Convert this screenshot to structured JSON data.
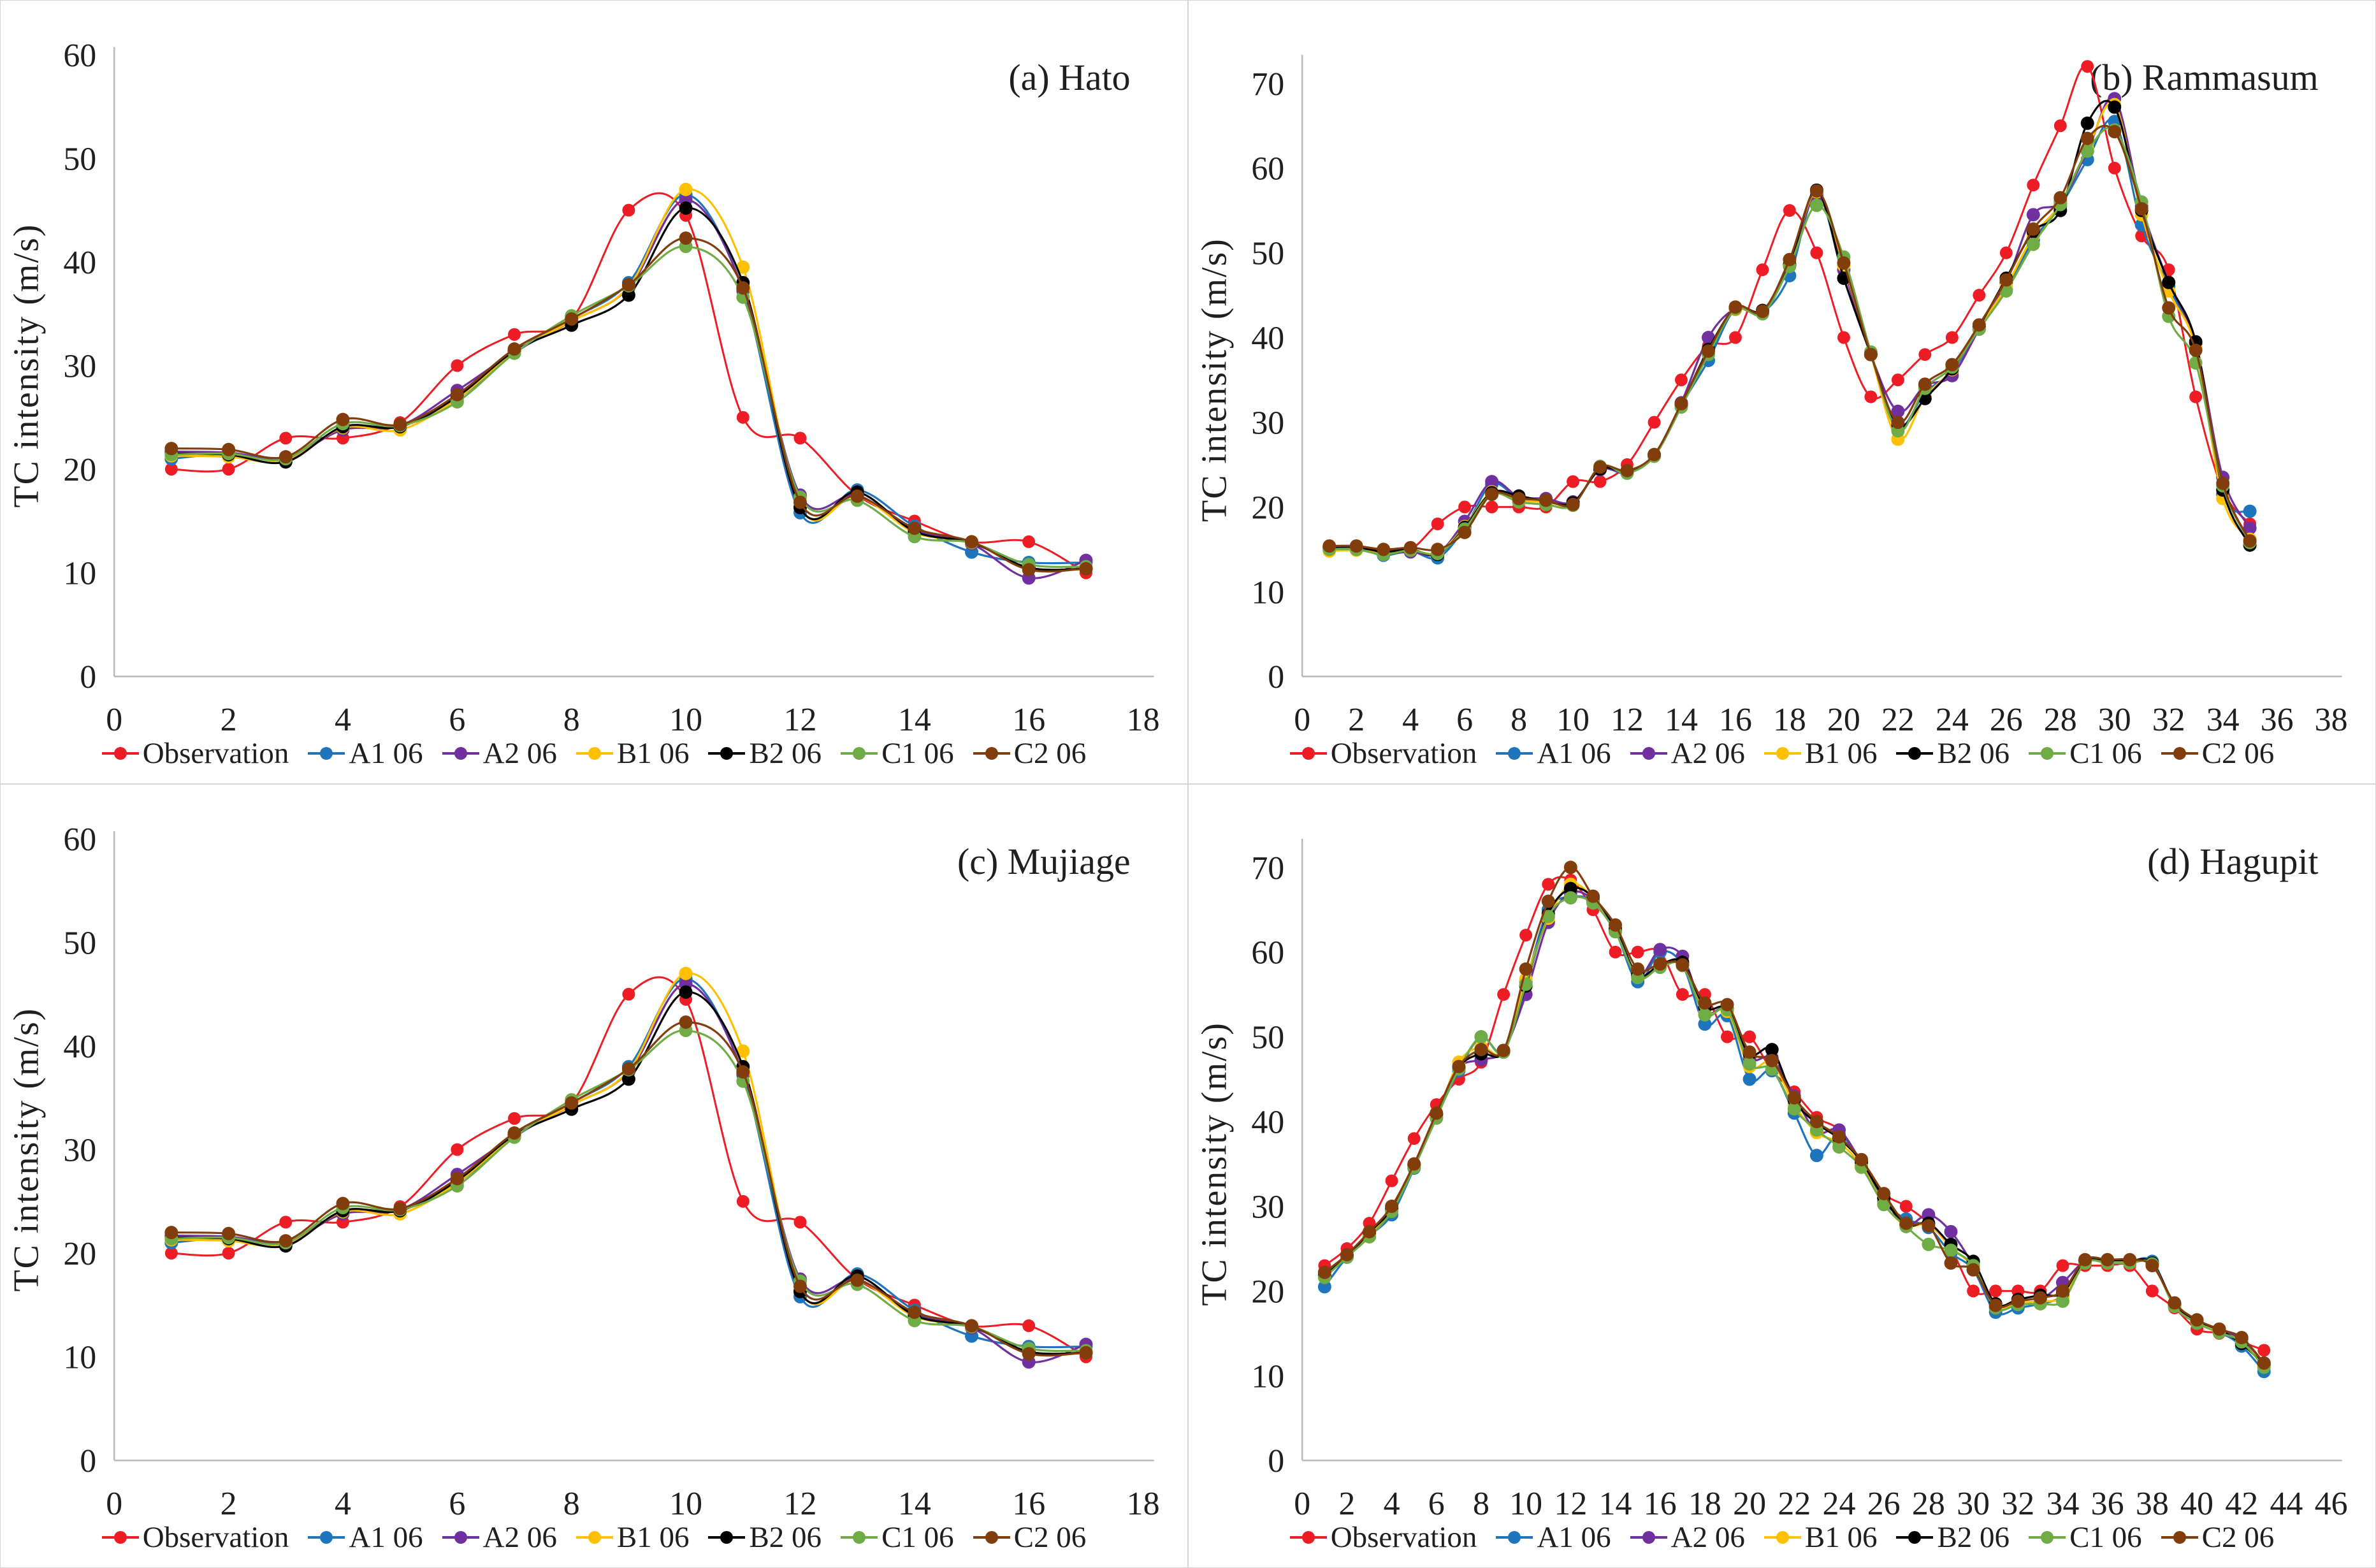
{
  "page": {
    "background": "#ffffff",
    "frame_color": "#d6d6d6"
  },
  "chart_data": [
    {
      "id": "a",
      "type": "line",
      "title": "(a) Hato",
      "xlabel": "",
      "ylabel": "TC intensity (m/s)",
      "xlim": [
        0,
        18
      ],
      "xtick_step": 2,
      "ylim": [
        0,
        60
      ],
      "ytick_step": 10,
      "x_start": 1,
      "grid": false,
      "legend_position": "bottom",
      "series": [
        {
          "name": "Observation",
          "color": "#EE1C25",
          "values": [
            20,
            20,
            23,
            23,
            24.5,
            30,
            33,
            34.5,
            45,
            44.5,
            25,
            23,
            17.5,
            15,
            13,
            13,
            10
          ]
        },
        {
          "name": "A1 06",
          "color": "#1F75BB",
          "values": [
            21,
            21.5,
            21,
            24,
            24.2,
            26.8,
            31.2,
            34.5,
            38,
            46.5,
            37.2,
            15.8,
            18,
            14.5,
            12,
            11,
            11
          ]
        },
        {
          "name": "A2 06",
          "color": "#7030A0",
          "values": [
            21.7,
            21.6,
            21.1,
            23.8,
            24.2,
            27.6,
            31.3,
            34.3,
            37.5,
            46,
            37.4,
            17.5,
            17.5,
            14.2,
            12.8,
            9.5,
            11.2
          ]
        },
        {
          "name": "B1 06",
          "color": "#FFC000",
          "values": [
            21.3,
            21.2,
            20.8,
            24,
            23.8,
            26.8,
            31.3,
            34.3,
            37.6,
            47,
            39.5,
            16.4,
            17.4,
            13.9,
            12.9,
            10.5,
            10.4
          ]
        },
        {
          "name": "B2 06",
          "color": "#000000",
          "values": [
            21.5,
            21.4,
            20.7,
            24.1,
            24.1,
            27,
            31.4,
            33.9,
            36.8,
            45.2,
            38,
            16.3,
            17.8,
            14,
            12.9,
            10.5,
            10.4
          ]
        },
        {
          "name": "C1 06",
          "color": "#6FAC46",
          "values": [
            21.4,
            21.5,
            21,
            24.4,
            24.2,
            26.5,
            31.2,
            34.8,
            37.7,
            41.5,
            36.6,
            17.3,
            17,
            13.5,
            12.9,
            10.8,
            10.6
          ]
        },
        {
          "name": "C2 06",
          "color": "#823D0C",
          "values": [
            22,
            21.9,
            21.2,
            24.8,
            24.3,
            27.2,
            31.6,
            34.5,
            37.8,
            42.3,
            37.5,
            16.8,
            17.4,
            14.3,
            13,
            10.3,
            10.4
          ]
        }
      ]
    },
    {
      "id": "b",
      "type": "line",
      "title": "(b) Rammasum",
      "xlabel": "",
      "ylabel": "TC intensity (m/s)",
      "xlim": [
        0,
        38
      ],
      "xtick_step": 2,
      "ylim": [
        0,
        70
      ],
      "ytick_step": 10,
      "x_start": 1,
      "grid": false,
      "legend_position": "bottom",
      "series": [
        {
          "name": "Observation",
          "color": "#EE1C25",
          "values": [
            15,
            15,
            15,
            15,
            18,
            20,
            20,
            20,
            20,
            23,
            23,
            25,
            30,
            35,
            39,
            40,
            48,
            55,
            50,
            40,
            33,
            35,
            38,
            40,
            45,
            50,
            58,
            65,
            72,
            60,
            52,
            48,
            33,
            22,
            18
          ]
        },
        {
          "name": "A1 06",
          "color": "#1F75BB",
          "values": [
            15.2,
            15.2,
            14.3,
            14.8,
            14,
            17.5,
            22.7,
            21,
            20.7,
            20.5,
            24.4,
            24,
            26,
            32,
            37.3,
            43.4,
            43,
            47.3,
            57,
            47,
            38,
            29.5,
            33.5,
            36,
            41,
            45.7,
            51.5,
            55.5,
            61,
            65.5,
            53.3,
            46,
            38.8,
            21.5,
            19.5
          ]
        },
        {
          "name": "A2 06",
          "color": "#7030A0",
          "values": [
            15.1,
            15.1,
            14.5,
            14.7,
            14.5,
            18.3,
            23,
            21.2,
            21,
            20.6,
            24.4,
            24.1,
            26,
            32.3,
            40,
            43.4,
            43,
            48.5,
            56.8,
            48,
            38,
            31.3,
            34.3,
            35.5,
            41,
            46.5,
            54.5,
            56,
            62,
            68.2,
            55.5,
            46.5,
            39.3,
            23.5,
            17.5
          ]
        },
        {
          "name": "B1 06",
          "color": "#FFC000",
          "values": [
            14.8,
            14.9,
            14.6,
            14.9,
            14.6,
            17.7,
            21.8,
            20.8,
            20.6,
            20.4,
            24.6,
            24.1,
            26,
            32,
            38.5,
            43.3,
            43,
            48.7,
            57.2,
            48.5,
            38,
            28,
            33,
            36.2,
            41.2,
            46,
            52,
            55.8,
            62.3,
            67.5,
            54.5,
            45.5,
            38.8,
            21,
            16.2
          ]
        },
        {
          "name": "B2 06",
          "color": "#000000",
          "values": [
            15.3,
            15.3,
            14.7,
            15,
            14.4,
            17.6,
            21.7,
            21.3,
            20.7,
            20.5,
            24.5,
            24.2,
            26.1,
            32.1,
            38.6,
            43.5,
            43.2,
            48.6,
            57.4,
            47,
            38,
            29.7,
            32.8,
            36.3,
            41.3,
            47,
            52.5,
            55,
            65.3,
            67.2,
            55,
            46.5,
            39.5,
            22,
            15.5
          ]
        },
        {
          "name": "C1 06",
          "color": "#6FAC46",
          "values": [
            15,
            15,
            14.4,
            14.9,
            14.5,
            17.4,
            21.5,
            20.6,
            20.3,
            20.2,
            24.8,
            24,
            26,
            31.8,
            38,
            43.4,
            42.8,
            48.4,
            55.6,
            49.5,
            38.3,
            29,
            34,
            36.5,
            41,
            45.5,
            51,
            55.7,
            62,
            64.5,
            56,
            42.5,
            37,
            22.5,
            15.8
          ]
        },
        {
          "name": "C2 06",
          "color": "#823D0C",
          "values": [
            15.4,
            15.4,
            15,
            15.2,
            15,
            17,
            21.5,
            21,
            20.8,
            20.3,
            24.7,
            24.3,
            26.2,
            32.2,
            38.4,
            43.6,
            43.1,
            49.2,
            57.3,
            48.8,
            38,
            30,
            34.5,
            36.8,
            41.5,
            46.8,
            52.8,
            56.5,
            63.5,
            64.3,
            55.2,
            43.5,
            38.5,
            22.8,
            16
          ]
        }
      ]
    },
    {
      "id": "c",
      "type": "line",
      "title": "(c) Mujiage",
      "xlabel": "",
      "ylabel": "TC intensity (m/s)",
      "xlim": [
        0,
        18
      ],
      "xtick_step": 2,
      "ylim": [
        0,
        60
      ],
      "ytick_step": 10,
      "x_start": 1,
      "grid": false,
      "legend_position": "bottom",
      "series": [
        {
          "name": "Observation",
          "color": "#EE1C25",
          "values": [
            20,
            20,
            23,
            23,
            24.5,
            30,
            33,
            34.5,
            45,
            44.5,
            25,
            23,
            17.5,
            15,
            13,
            13,
            10
          ]
        },
        {
          "name": "A1 06",
          "color": "#1F75BB",
          "values": [
            21,
            21.5,
            21,
            24,
            24.2,
            26.8,
            31.2,
            34.5,
            38,
            46.5,
            37.2,
            15.8,
            18,
            14.5,
            12,
            11,
            11
          ]
        },
        {
          "name": "A2 06",
          "color": "#7030A0",
          "values": [
            21.7,
            21.6,
            21.1,
            23.8,
            24.2,
            27.6,
            31.3,
            34.3,
            37.5,
            46,
            37.4,
            17.5,
            17.5,
            14.2,
            12.8,
            9.5,
            11.2
          ]
        },
        {
          "name": "B1 06",
          "color": "#FFC000",
          "values": [
            21.3,
            21.2,
            20.8,
            24,
            23.8,
            26.8,
            31.3,
            34.3,
            37.6,
            47,
            39.5,
            16.4,
            17.4,
            13.9,
            12.9,
            10.5,
            10.4
          ]
        },
        {
          "name": "B2 06",
          "color": "#000000",
          "values": [
            21.5,
            21.4,
            20.7,
            24.1,
            24.1,
            27,
            31.4,
            33.9,
            36.8,
            45.2,
            38,
            16.3,
            17.8,
            14,
            12.9,
            10.5,
            10.4
          ]
        },
        {
          "name": "C1 06",
          "color": "#6FAC46",
          "values": [
            21.4,
            21.5,
            21,
            24.4,
            24.2,
            26.5,
            31.2,
            34.8,
            37.7,
            41.5,
            36.6,
            17.3,
            17,
            13.5,
            12.9,
            10.8,
            10.6
          ]
        },
        {
          "name": "C2 06",
          "color": "#823D0C",
          "values": [
            22,
            21.9,
            21.2,
            24.8,
            24.3,
            27.2,
            31.6,
            34.5,
            37.8,
            42.3,
            37.5,
            16.8,
            17.4,
            14.3,
            13,
            10.3,
            10.4
          ]
        }
      ]
    },
    {
      "id": "d",
      "type": "line",
      "title": "(d) Hagupit",
      "xlabel": "",
      "ylabel": "TC intensity (m/s)",
      "xlim": [
        0,
        46
      ],
      "xtick_step": 2,
      "ylim": [
        0,
        70
      ],
      "ytick_step": 10,
      "x_start": 1,
      "grid": false,
      "legend_position": "bottom",
      "series": [
        {
          "name": "Observation",
          "color": "#EE1C25",
          "values": [
            23,
            25,
            28,
            33,
            38,
            42,
            45,
            47,
            55,
            62,
            68,
            68.5,
            65,
            60,
            60,
            60,
            55,
            55,
            50,
            50,
            46,
            43.5,
            40.5,
            39,
            35,
            31.5,
            30,
            28,
            25,
            20,
            20,
            20,
            20,
            23,
            23,
            23,
            23,
            20,
            18,
            15.5,
            15,
            14,
            13
          ]
        },
        {
          "name": "A1 06",
          "color": "#1F75BB",
          "values": [
            20.5,
            24,
            26.5,
            29,
            34.5,
            40.5,
            46,
            50,
            48.3,
            56.5,
            65,
            66.5,
            66,
            62.5,
            56.5,
            60,
            58.5,
            51.5,
            52.5,
            45,
            46,
            41,
            36,
            38.5,
            35,
            30.5,
            28.5,
            27.5,
            24.5,
            22.5,
            17.5,
            18,
            18.5,
            19.5,
            23.5,
            23.5,
            23.5,
            23.5,
            18.3,
            16.3,
            15.2,
            13.5,
            10.5
          ]
        },
        {
          "name": "A2 06",
          "color": "#7030A0",
          "values": [
            21.8,
            24,
            26.8,
            29.5,
            34.8,
            40.8,
            46.3,
            47.3,
            48.4,
            55,
            63.5,
            67,
            66.2,
            62.8,
            57.2,
            60.3,
            59.5,
            53,
            53.2,
            47.5,
            47.5,
            43,
            38.8,
            39,
            35.2,
            31,
            27.8,
            29,
            27,
            23,
            18,
            18.5,
            19,
            21,
            23.5,
            23.5,
            23.5,
            23.2,
            18.4,
            16.4,
            15.3,
            14.3,
            11.5
          ]
        },
        {
          "name": "B1 06",
          "color": "#FFC000",
          "values": [
            21.9,
            24.2,
            26.6,
            29.6,
            34.6,
            40.6,
            47,
            48.8,
            48.3,
            56.8,
            64,
            68,
            66.4,
            62.6,
            57,
            58.3,
            58.6,
            52.8,
            53,
            46.5,
            47,
            42,
            38.7,
            37.5,
            34.8,
            30.3,
            27.7,
            27.8,
            25.2,
            22.8,
            18.2,
            18.6,
            18.8,
            19.3,
            23.4,
            23.4,
            23.4,
            23.2,
            18.2,
            16.3,
            15.2,
            14,
            11.2
          ]
        },
        {
          "name": "B2 06",
          "color": "#000000",
          "values": [
            21.8,
            24.1,
            26.9,
            29.7,
            34.9,
            40.9,
            46.4,
            48,
            48.2,
            56,
            64.5,
            67.5,
            66.5,
            62.7,
            57.3,
            58.5,
            58.8,
            53.5,
            53.3,
            48,
            48.5,
            42.5,
            39.8,
            38,
            35.3,
            31,
            27.8,
            28,
            25.5,
            23.5,
            18.5,
            19,
            19.5,
            19.8,
            23.6,
            23.6,
            23.6,
            23.3,
            18.5,
            16.5,
            15.4,
            13.8,
            11.3
          ]
        },
        {
          "name": "C1 06",
          "color": "#6FAC46",
          "values": [
            21.6,
            24,
            26.4,
            29.4,
            34.6,
            40.4,
            46.2,
            50,
            48.2,
            56.2,
            64.2,
            66.4,
            65.8,
            62.4,
            57,
            58.2,
            58.4,
            52.6,
            53.2,
            46.8,
            46.2,
            41.5,
            39,
            37,
            34.6,
            30.2,
            27.6,
            25.5,
            24.8,
            23,
            18,
            18.4,
            18.5,
            18.8,
            23.3,
            23.3,
            23.3,
            23.2,
            18.2,
            16.2,
            15.1,
            14,
            11
          ]
        },
        {
          "name": "C2 06",
          "color": "#823D0C",
          "values": [
            22.2,
            24.3,
            27,
            30,
            35,
            41,
            46.5,
            48.5,
            48.4,
            58,
            66,
            70,
            66.6,
            63.2,
            58,
            58.6,
            58.5,
            54,
            53.8,
            48.2,
            47.2,
            42.8,
            40,
            38.2,
            35.5,
            31.5,
            28,
            27.7,
            23.3,
            22.5,
            18.3,
            18.8,
            19.2,
            20,
            23.7,
            23.7,
            23.7,
            23,
            18.6,
            16.6,
            15.5,
            14.5,
            11.5
          ]
        }
      ]
    }
  ]
}
